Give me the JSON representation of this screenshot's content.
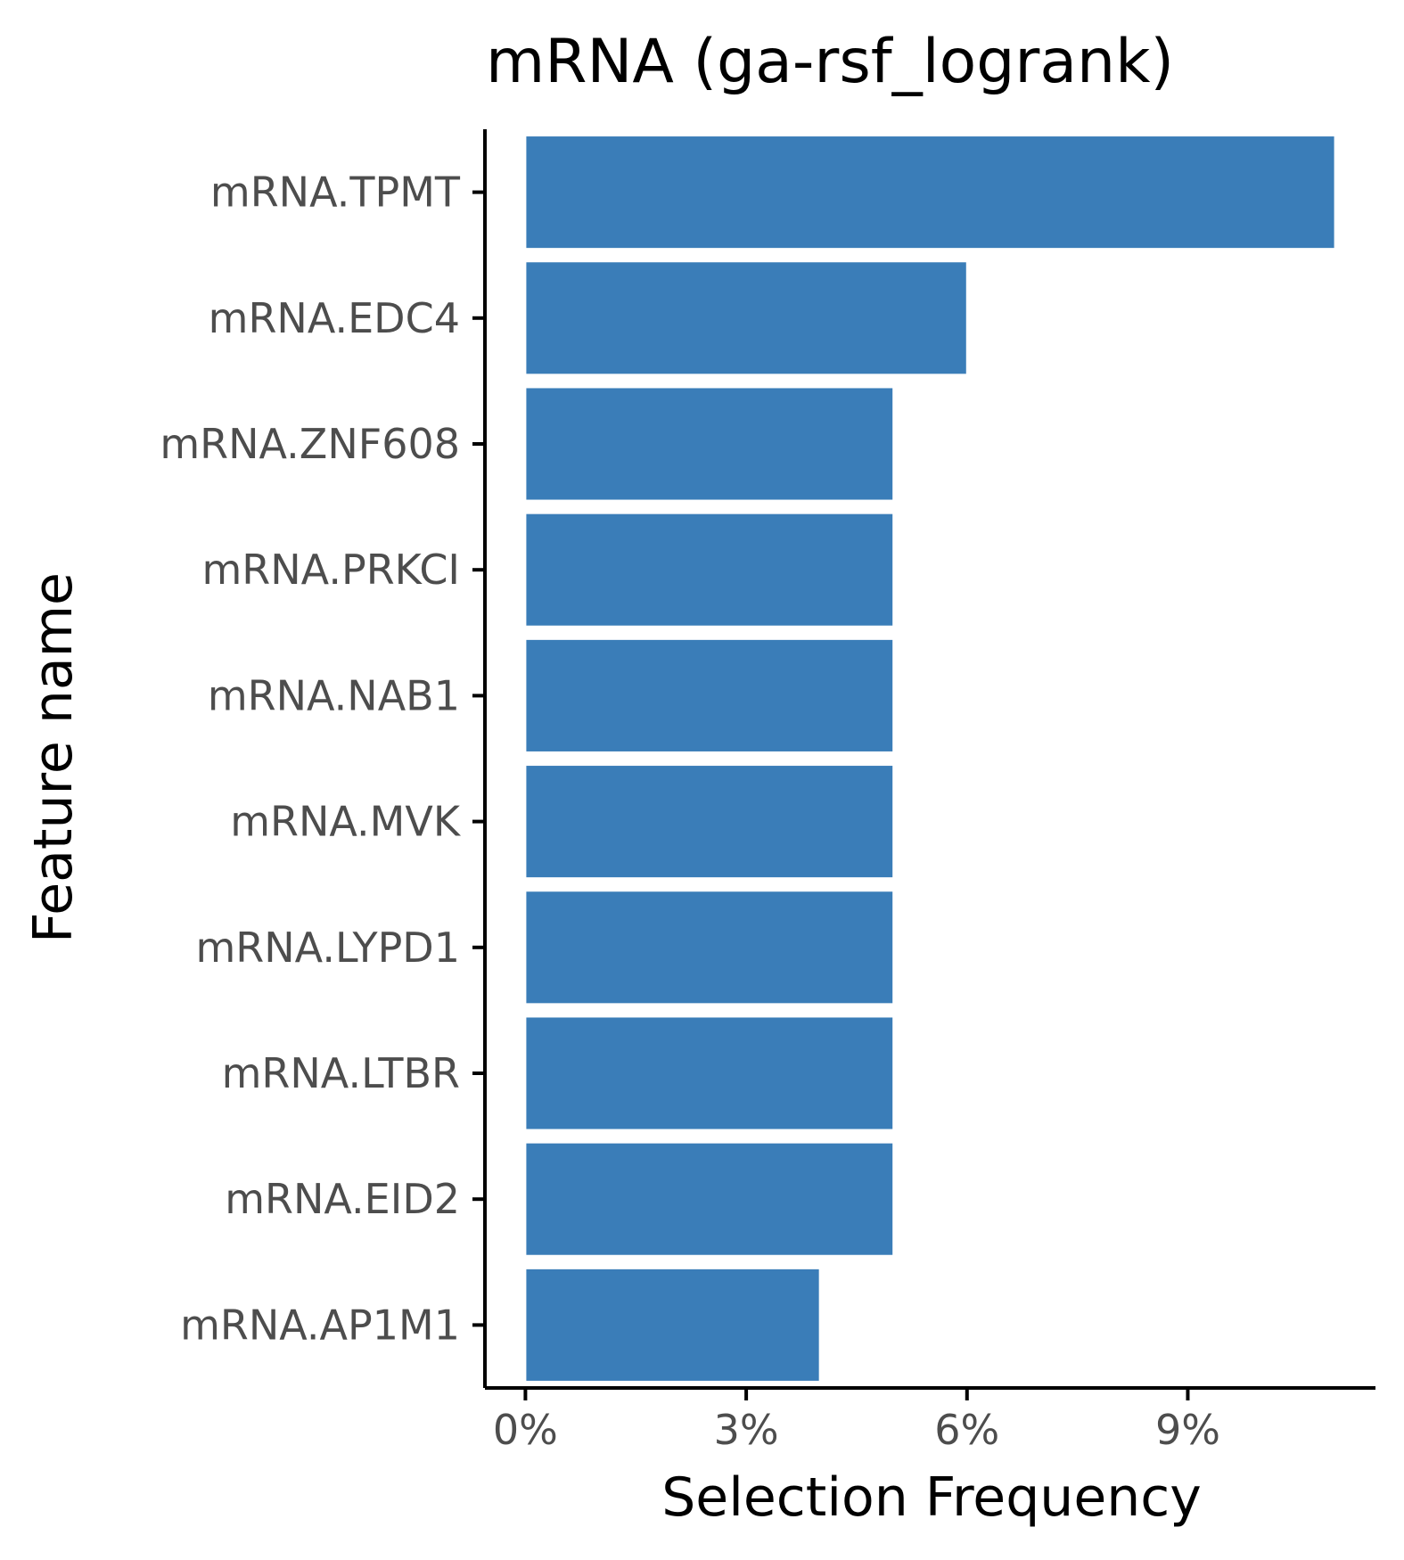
{
  "chart_data": {
    "type": "bar",
    "orientation": "horizontal",
    "title": "mRNA (ga-rsf_logrank)",
    "xlabel": "Selection Frequency",
    "ylabel": "Feature name",
    "categories": [
      "mRNA.TPMT",
      "mRNA.EDC4",
      "mRNA.ZNF608",
      "mRNA.PRKCI",
      "mRNA.NAB1",
      "mRNA.MVK",
      "mRNA.LYPD1",
      "mRNA.LTBR",
      "mRNA.EID2",
      "mRNA.AP1M1"
    ],
    "values": [
      11,
      6,
      5,
      5,
      5,
      5,
      5,
      5,
      5,
      4
    ],
    "value_unit": "%",
    "xlim": [
      -0.55,
      11.55
    ],
    "xticks": [
      0,
      3,
      6,
      9
    ],
    "xtick_labels": [
      "0%",
      "3%",
      "6%",
      "9%"
    ],
    "grid": false,
    "legend": "none",
    "bar_color": "#3a7db8",
    "bar_outline_color": "#ffffff",
    "axis_color": "#000000",
    "tick_label_color": "#4d4d4d"
  }
}
